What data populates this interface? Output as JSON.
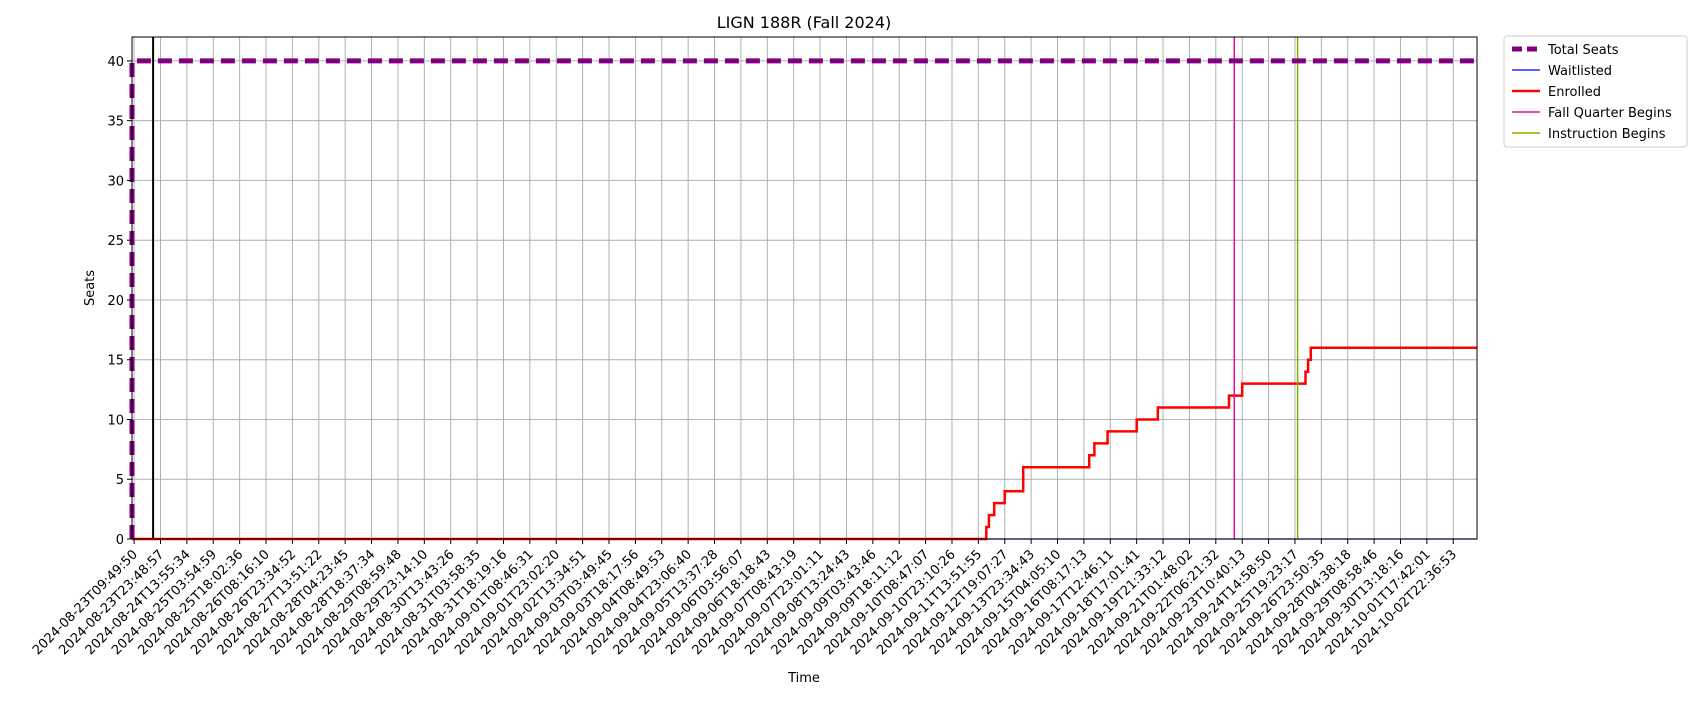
{
  "chart_data": {
    "type": "line",
    "title": "LIGN 188R (Fall 2024)",
    "xlabel": "Time",
    "ylabel": "Seats",
    "ylim": [
      0,
      42
    ],
    "y_ticks": [
      0,
      5,
      10,
      15,
      20,
      25,
      30,
      35,
      40
    ],
    "grid": true,
    "legend_position": "outside-top-right",
    "x_tick_labels": [
      "2024-08-23T09:49:50",
      "2024-08-23T23:48:57",
      "2024-08-24T13:55:34",
      "2024-08-25T03:54:59",
      "2024-08-25T18:02:36",
      "2024-08-26T08:16:10",
      "2024-08-26T23:34:52",
      "2024-08-27T13:51:22",
      "2024-08-28T04:23:45",
      "2024-08-28T18:37:34",
      "2024-08-29T08:59:48",
      "2024-08-29T23:14:10",
      "2024-08-30T13:43:26",
      "2024-08-31T03:58:35",
      "2024-08-31T18:19:16",
      "2024-09-01T08:46:31",
      "2024-09-01T23:02:20",
      "2024-09-02T13:34:51",
      "2024-09-03T03:49:45",
      "2024-09-03T18:17:56",
      "2024-09-04T08:49:53",
      "2024-09-04T23:06:40",
      "2024-09-05T13:37:28",
      "2024-09-06T03:56:07",
      "2024-09-06T18:18:43",
      "2024-09-07T08:43:19",
      "2024-09-07T23:01:11",
      "2024-09-08T13:24:43",
      "2024-09-09T03:43:46",
      "2024-09-09T18:11:12",
      "2024-09-10T08:47:07",
      "2024-09-10T23:10:26",
      "2024-09-11T13:51:55",
      "2024-09-12T19:07:27",
      "2024-09-13T23:34:43",
      "2024-09-15T04:05:10",
      "2024-09-16T08:17:13",
      "2024-09-17T12:46:11",
      "2024-09-18T17:01:41",
      "2024-09-19T21:33:12",
      "2024-09-21T01:48:02",
      "2024-09-22T06:21:32",
      "2024-09-23T10:40:13",
      "2024-09-24T14:58:50",
      "2024-09-25T19:23:17",
      "2024-09-26T23:50:35",
      "2024-09-28T04:38:18",
      "2024-09-29T08:58:46",
      "2024-09-30T13:18:16",
      "2024-10-01T17:42:01",
      "2024-10-02T22:36:53"
    ],
    "series": [
      {
        "name": "Total Seats",
        "color": "#800080",
        "style": "dashed-thick",
        "points": [
          [
            -0.08,
            0
          ],
          [
            -0.08,
            40
          ],
          [
            50.9,
            40
          ]
        ]
      },
      {
        "name": "Waitlisted",
        "color": "#0000ff",
        "style": "solid-thin",
        "points": [
          [
            -0.08,
            0
          ],
          [
            50.9,
            0
          ]
        ]
      },
      {
        "name": "Enrolled",
        "color": "#ff0000",
        "style": "solid-medium",
        "points": [
          [
            -0.08,
            0
          ],
          [
            32.3,
            0
          ],
          [
            32.3,
            1
          ],
          [
            32.4,
            1
          ],
          [
            32.4,
            2
          ],
          [
            32.6,
            2
          ],
          [
            32.6,
            3
          ],
          [
            33.0,
            3
          ],
          [
            33.0,
            4
          ],
          [
            33.7,
            4
          ],
          [
            33.7,
            6
          ],
          [
            36.2,
            6
          ],
          [
            36.2,
            7
          ],
          [
            36.4,
            7
          ],
          [
            36.4,
            8
          ],
          [
            36.9,
            8
          ],
          [
            36.9,
            9
          ],
          [
            38.0,
            9
          ],
          [
            38.0,
            10
          ],
          [
            38.8,
            10
          ],
          [
            38.8,
            11
          ],
          [
            41.5,
            11
          ],
          [
            41.5,
            12
          ],
          [
            42.0,
            12
          ],
          [
            42.0,
            13
          ],
          [
            44.4,
            13
          ],
          [
            44.4,
            14
          ],
          [
            44.5,
            14
          ],
          [
            44.5,
            15
          ],
          [
            44.6,
            15
          ],
          [
            44.6,
            16
          ],
          [
            50.9,
            16
          ]
        ]
      },
      {
        "name": "Fall Quarter Begins",
        "color": "#e0109a",
        "style": "vertical",
        "x": 41.7
      },
      {
        "name": "Instruction Begins",
        "color": "#7fb000",
        "style": "vertical",
        "x": 44.1
      }
    ],
    "black_vertical_x": 0.72,
    "x_range": [
      -0.08,
      50.9
    ]
  }
}
